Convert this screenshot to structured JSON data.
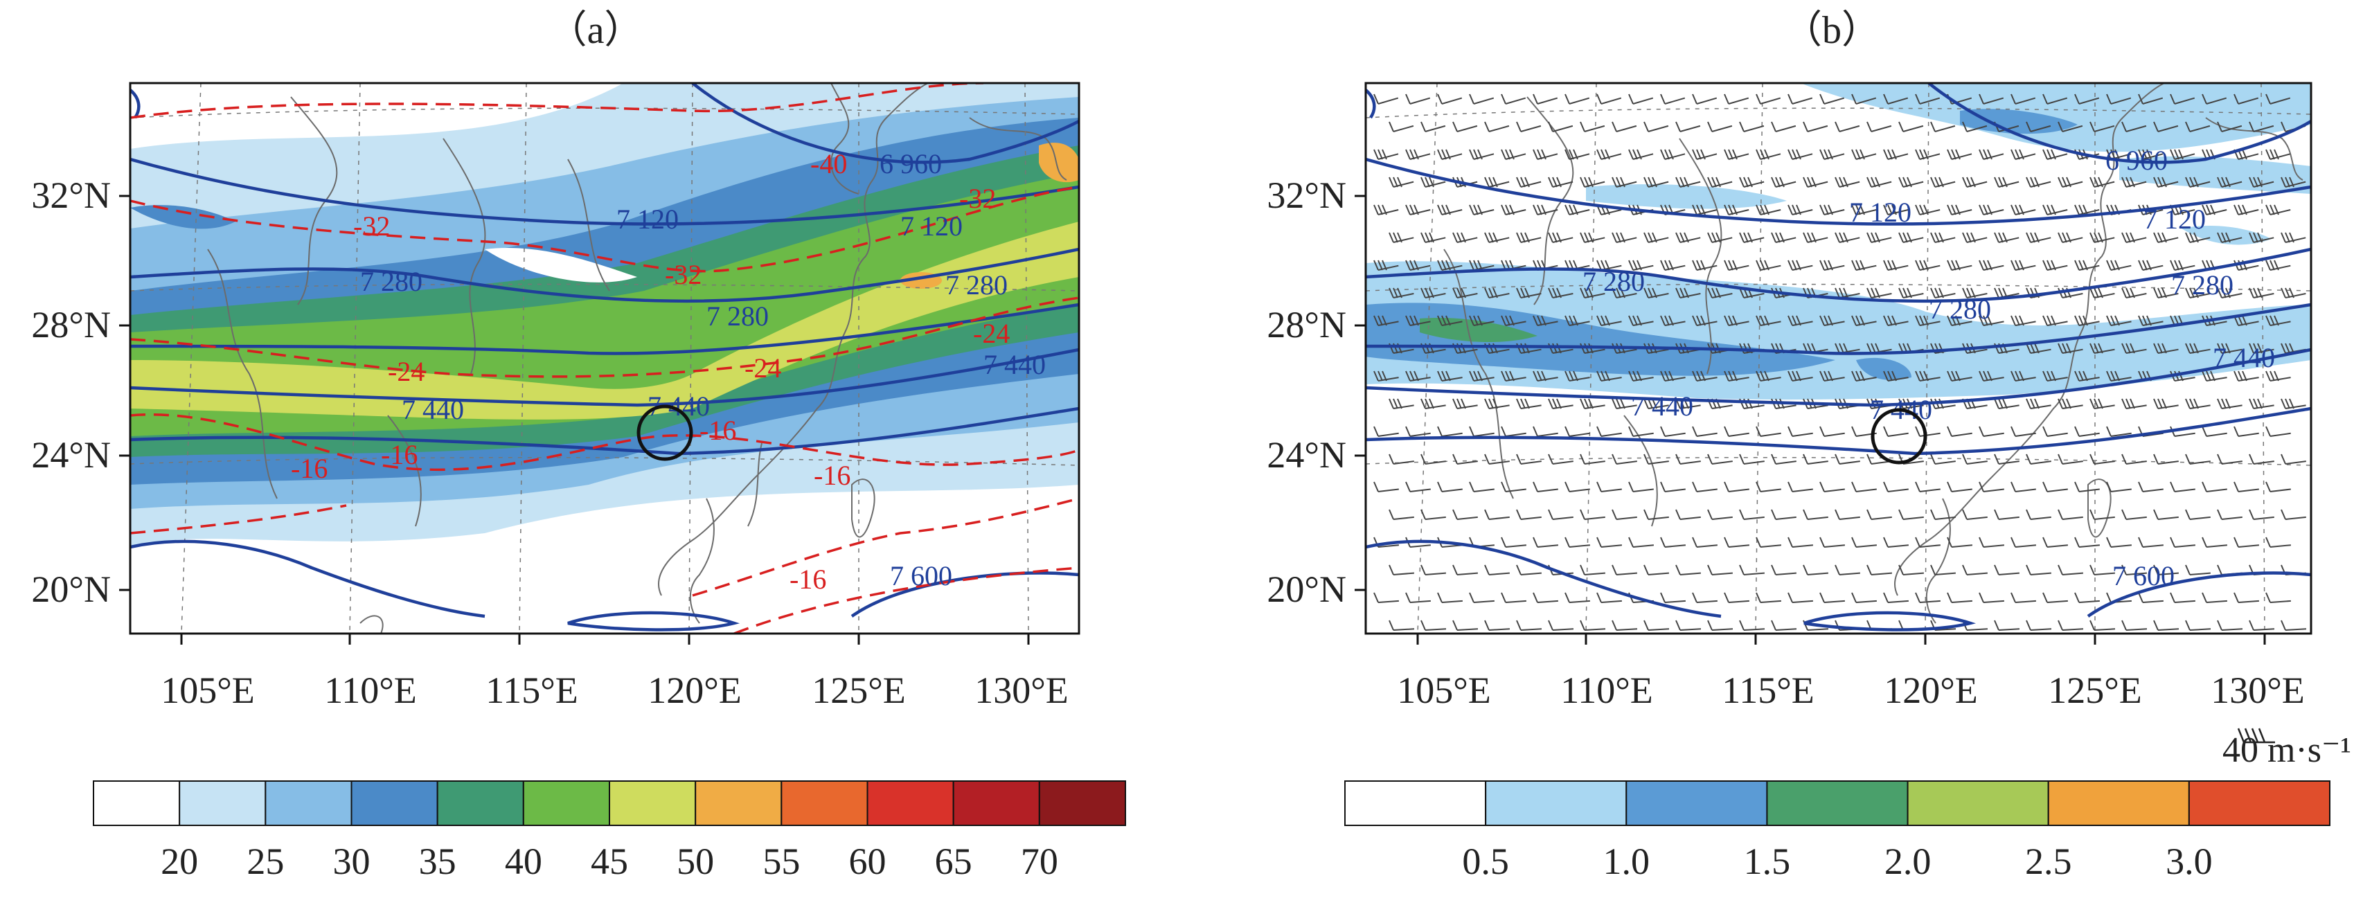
{
  "panels": [
    {
      "id": "a",
      "label": "（a）",
      "x_ticks": [
        "105°E",
        "110°E",
        "115°E",
        "120°E",
        "125°E",
        "130°E"
      ],
      "y_ticks": [
        "32°N",
        "28°N",
        "24°N",
        "20°N"
      ],
      "height_contours": [
        "6 960",
        "7 120",
        "7 120",
        "7 120",
        "7 280",
        "7 280",
        "7 280",
        "7 440",
        "7 440",
        "7 440",
        "7 600"
      ],
      "temperature_contours": [
        "-40",
        "-32",
        "-32",
        "-32",
        "-24",
        "-24",
        "-24",
        "-16",
        "-16",
        "-16",
        "-16",
        "-16"
      ],
      "colorbar": {
        "ticks": [
          "20",
          "25",
          "30",
          "35",
          "40",
          "45",
          "50",
          "55",
          "60",
          "65",
          "70"
        ],
        "colors": [
          "#ffffff",
          "#c6e3f4",
          "#86bde6",
          "#4b8ac8",
          "#3f9a73",
          "#6cba47",
          "#cfdc5e",
          "#f0ac45",
          "#e8682e",
          "#d9322a",
          "#b31f25",
          "#8c1a1d"
        ]
      }
    },
    {
      "id": "b",
      "label": "（b）",
      "x_ticks": [
        "105°E",
        "110°E",
        "115°E",
        "120°E",
        "125°E",
        "130°E"
      ],
      "y_ticks": [
        "32°N",
        "28°N",
        "24°N",
        "20°N"
      ],
      "height_contours": [
        "6 960",
        "7 120",
        "7 120",
        "7 120",
        "7 280",
        "7 280",
        "7 280",
        "7 440",
        "7 440",
        "7 440",
        "7 600"
      ],
      "wind_unit": "40 m·s⁻¹",
      "colorbar": {
        "ticks": [
          "0.5",
          "1.0",
          "1.5",
          "2.0",
          "2.5",
          "3.0"
        ],
        "colors": [
          "#ffffff",
          "#a9d7f2",
          "#5b9bd5",
          "#4aa06b",
          "#a7c957",
          "#f0a23c",
          "#e04e2c"
        ]
      }
    }
  ],
  "colors": {
    "height_contour": "#1f3f9a",
    "temperature_contour": "#d81f1f",
    "coastline": "#6b6b6b",
    "marker_circle": "#111111"
  }
}
